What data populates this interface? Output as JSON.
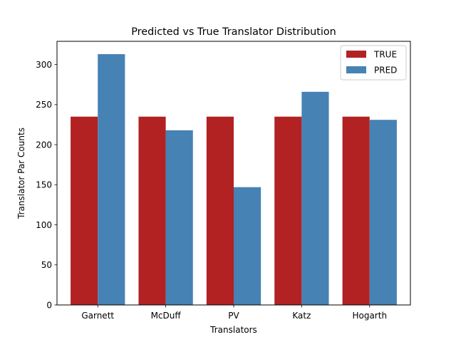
{
  "chart_data": {
    "type": "bar",
    "title": "Predicted vs True Translator Distribution",
    "xlabel": "Translators",
    "ylabel": "Translator Par Counts",
    "categories": [
      "Garnett",
      "McDuff",
      "PV",
      "Katz",
      "Hogarth"
    ],
    "series": [
      {
        "name": "TRUE",
        "color": "#b22222",
        "values": [
          235,
          235,
          235,
          235,
          235
        ]
      },
      {
        "name": "PRED",
        "color": "#4682b4",
        "values": [
          313,
          218,
          147,
          266,
          231
        ]
      }
    ],
    "ylim": [
      0,
      329
    ],
    "yticks": [
      0,
      50,
      100,
      150,
      200,
      250,
      300
    ],
    "grid": false,
    "legend": "top-right"
  }
}
